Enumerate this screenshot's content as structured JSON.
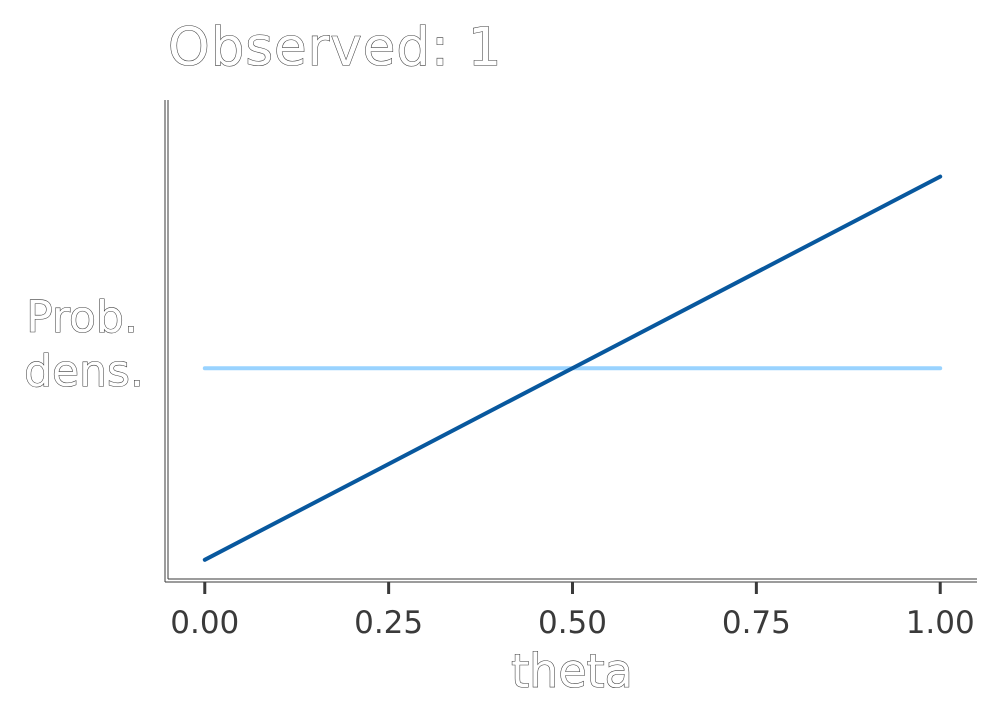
{
  "chart_data": {
    "type": "line",
    "title": "Observed: 1",
    "xlabel": "theta",
    "ylabel_lines": [
      "Prob.",
      "dens."
    ],
    "x_ticks": [
      0,
      0.25,
      0.5,
      0.75,
      1
    ],
    "x_tick_labels": [
      "0.00",
      "0.25",
      "0.50",
      "0.75",
      "1.00"
    ],
    "xlim": [
      -0.05,
      1.05
    ],
    "ylim": [
      -0.1,
      2.4
    ],
    "y_ticks_shown": false,
    "grid": false,
    "series": [
      {
        "x": [
          0,
          1
        ],
        "y": [
          1,
          1
        ],
        "color": "#99d3ff"
      },
      {
        "x": [
          0,
          1
        ],
        "y": [
          0,
          2
        ],
        "color": "#08589e"
      }
    ]
  }
}
